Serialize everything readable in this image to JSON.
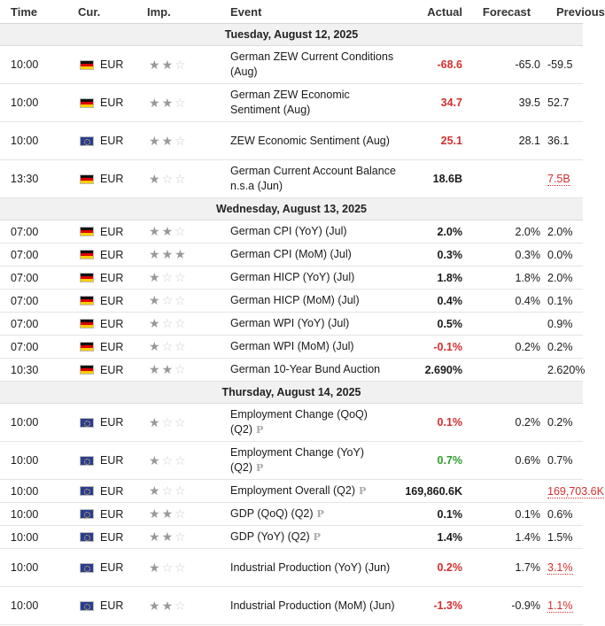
{
  "headers": {
    "time": "Time",
    "cur": "Cur.",
    "imp": "Imp.",
    "event": "Event",
    "actual": "Actual",
    "forecast": "Forecast",
    "previous": "Previous"
  },
  "days": [
    {
      "date": "Tuesday, August 12, 2025",
      "rows": [
        {
          "time": "10:00",
          "flag": "de",
          "cur": "EUR",
          "imp": 2,
          "event": "German ZEW Current Conditions (Aug)",
          "actual": "-68.6",
          "actual_color": "red",
          "forecast": "-65.0",
          "previous": "-59.5",
          "prev_revised": false,
          "prelim": false,
          "tall": true
        },
        {
          "time": "10:00",
          "flag": "de",
          "cur": "EUR",
          "imp": 2,
          "event": "German ZEW Economic Sentiment (Aug)",
          "actual": "34.7",
          "actual_color": "red",
          "forecast": "39.5",
          "previous": "52.7",
          "prev_revised": false,
          "prelim": false,
          "tall": true
        },
        {
          "time": "10:00",
          "flag": "eu",
          "cur": "EUR",
          "imp": 2,
          "event": "ZEW Economic Sentiment (Aug)",
          "actual": "25.1",
          "actual_color": "red",
          "forecast": "28.1",
          "previous": "36.1",
          "prev_revised": false,
          "prelim": false,
          "tall": true
        },
        {
          "time": "13:30",
          "flag": "de",
          "cur": "EUR",
          "imp": 1,
          "event": "German Current Account Balance n.s.a (Jun)",
          "actual": "18.6B",
          "actual_color": "black",
          "forecast": "",
          "previous": "7.5B",
          "prev_revised": true,
          "prelim": false,
          "tall": true
        }
      ]
    },
    {
      "date": "Wednesday, August 13, 2025",
      "rows": [
        {
          "time": "07:00",
          "flag": "de",
          "cur": "EUR",
          "imp": 2,
          "event": "German CPI (YoY) (Jul)",
          "actual": "2.0%",
          "actual_color": "black",
          "forecast": "2.0%",
          "previous": "2.0%",
          "prev_revised": false,
          "prelim": false,
          "tall": false
        },
        {
          "time": "07:00",
          "flag": "de",
          "cur": "EUR",
          "imp": 3,
          "event": "German CPI (MoM) (Jul)",
          "actual": "0.3%",
          "actual_color": "black",
          "forecast": "0.3%",
          "previous": "0.0%",
          "prev_revised": false,
          "prelim": false,
          "tall": false
        },
        {
          "time": "07:00",
          "flag": "de",
          "cur": "EUR",
          "imp": 1,
          "event": "German HICP (YoY) (Jul)",
          "actual": "1.8%",
          "actual_color": "black",
          "forecast": "1.8%",
          "previous": "2.0%",
          "prev_revised": false,
          "prelim": false,
          "tall": false
        },
        {
          "time": "07:00",
          "flag": "de",
          "cur": "EUR",
          "imp": 1,
          "event": "German HICP (MoM) (Jul)",
          "actual": "0.4%",
          "actual_color": "black",
          "forecast": "0.4%",
          "previous": "0.1%",
          "prev_revised": false,
          "prelim": false,
          "tall": false
        },
        {
          "time": "07:00",
          "flag": "de",
          "cur": "EUR",
          "imp": 1,
          "event": "German WPI (YoY) (Jul)",
          "actual": "0.5%",
          "actual_color": "black",
          "forecast": "",
          "previous": "0.9%",
          "prev_revised": false,
          "prelim": false,
          "tall": false
        },
        {
          "time": "07:00",
          "flag": "de",
          "cur": "EUR",
          "imp": 1,
          "event": "German WPI (MoM) (Jul)",
          "actual": "-0.1%",
          "actual_color": "red",
          "forecast": "0.2%",
          "previous": "0.2%",
          "prev_revised": false,
          "prelim": false,
          "tall": false
        },
        {
          "time": "10:30",
          "flag": "de",
          "cur": "EUR",
          "imp": 2,
          "event": "German 10-Year Bund Auction",
          "actual": "2.690%",
          "actual_color": "black",
          "forecast": "",
          "previous": "2.620%",
          "prev_revised": false,
          "prelim": false,
          "tall": false
        }
      ]
    },
    {
      "date": "Thursday, August 14, 2025",
      "rows": [
        {
          "time": "10:00",
          "flag": "eu",
          "cur": "EUR",
          "imp": 1,
          "event": "Employment Change (QoQ) (Q2)",
          "actual": "0.1%",
          "actual_color": "red",
          "forecast": "0.2%",
          "previous": "0.2%",
          "prev_revised": false,
          "prelim": true,
          "tall": true
        },
        {
          "time": "10:00",
          "flag": "eu",
          "cur": "EUR",
          "imp": 1,
          "event": "Employment Change (YoY) (Q2)",
          "actual": "0.7%",
          "actual_color": "green",
          "forecast": "0.6%",
          "previous": "0.7%",
          "prev_revised": false,
          "prelim": true,
          "tall": true
        },
        {
          "time": "10:00",
          "flag": "eu",
          "cur": "EUR",
          "imp": 1,
          "event": "Employment Overall (Q2)",
          "actual": "169,860.6K",
          "actual_color": "black",
          "forecast": "",
          "previous": "169,703.6K",
          "prev_revised": true,
          "prelim": true,
          "tall": false
        },
        {
          "time": "10:00",
          "flag": "eu",
          "cur": "EUR",
          "imp": 2,
          "event": "GDP (QoQ) (Q2)",
          "actual": "0.1%",
          "actual_color": "black",
          "forecast": "0.1%",
          "previous": "0.6%",
          "prev_revised": false,
          "prelim": true,
          "tall": false
        },
        {
          "time": "10:00",
          "flag": "eu",
          "cur": "EUR",
          "imp": 2,
          "event": "GDP (YoY) (Q2)",
          "actual": "1.4%",
          "actual_color": "black",
          "forecast": "1.4%",
          "previous": "1.5%",
          "prev_revised": false,
          "prelim": true,
          "tall": false
        },
        {
          "time": "10:00",
          "flag": "eu",
          "cur": "EUR",
          "imp": 1,
          "event": "Industrial Production (YoY) (Jun)",
          "actual": "0.2%",
          "actual_color": "red",
          "forecast": "1.7%",
          "previous": "3.1%",
          "prev_revised": true,
          "prelim": false,
          "tall": true
        },
        {
          "time": "10:00",
          "flag": "eu",
          "cur": "EUR",
          "imp": 2,
          "event": "Industrial Production (MoM) (Jun)",
          "actual": "-1.3%",
          "actual_color": "red",
          "forecast": "-0.9%",
          "previous": "1.1%",
          "prev_revised": true,
          "prelim": false,
          "tall": true
        }
      ]
    }
  ],
  "icons": {
    "star": "star-icon",
    "prelim": "preliminary-p-icon",
    "flag_de": "germany-flag-icon",
    "flag_eu": "eu-flag-icon"
  },
  "colors": {
    "red": "#d32f2f",
    "green": "#2e9d2e",
    "day_bg": "#f1f1f1"
  },
  "prelim_glyph": "P"
}
